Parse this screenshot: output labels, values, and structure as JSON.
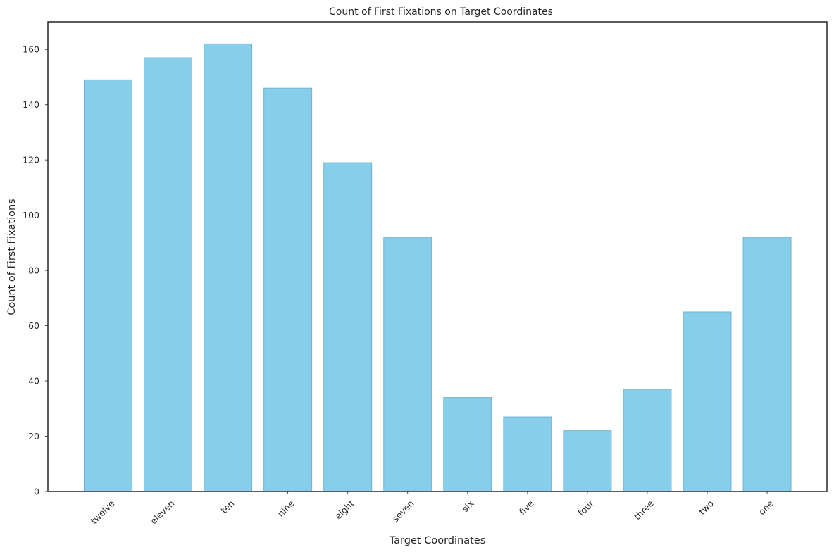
{
  "chart_data": {
    "type": "bar",
    "title": "Count of First Fixations on Target Coordinates",
    "xlabel": "Target Coordinates",
    "ylabel": "Count of First Fixations",
    "categories": [
      "twelve",
      "eleven",
      "ten",
      "nine",
      "eight",
      "seven",
      "six",
      "five",
      "four",
      "three",
      "two",
      "one"
    ],
    "values": [
      149,
      157,
      162,
      146,
      119,
      92,
      34,
      27,
      22,
      37,
      65,
      92
    ],
    "ylim": [
      0,
      170
    ],
    "yticks": [
      0,
      20,
      40,
      60,
      80,
      100,
      120,
      140,
      160
    ],
    "grid": false,
    "legend": "none",
    "x_tick_rotation_deg": 45,
    "colors": {
      "bar_fill": "#87ceeb",
      "bar_edge": "#6fb3d2",
      "axes": "#262626",
      "text": "#262626",
      "background": "#ffffff"
    }
  }
}
